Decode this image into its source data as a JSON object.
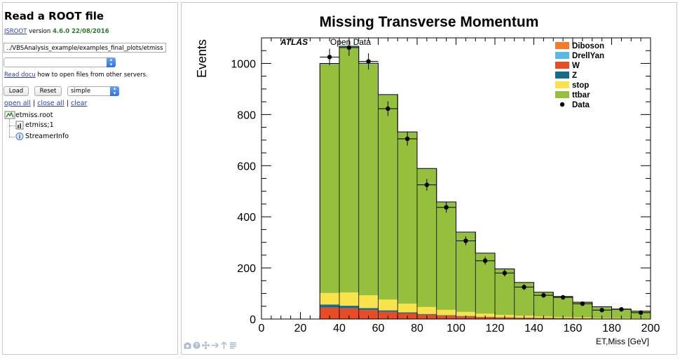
{
  "left": {
    "title": "Read a ROOT file",
    "version_link": "JSROOT",
    "version_text": " version ",
    "version_value": "4.6.0 22/08/2016",
    "file_path": "../VBSAnalysis_example/examples_final_plots/etmiss",
    "docu_link": "Read docu",
    "docu_text": " how to open files from other servers.",
    "load_label": "Load",
    "reset_label": "Reset",
    "layout_value": "simple",
    "open_all": "open all",
    "close_all": "close all",
    "clear": "clear",
    "sep": "|",
    "tree": {
      "root": "etmiss.root",
      "item1": "etmiss;1",
      "item2": "StreamerInfo"
    }
  },
  "toolbar": [
    "camera-icon",
    "help-icon",
    "move-icon",
    "arrow-right-icon",
    "arrow-up-icon",
    "menu-icon"
  ],
  "colors": {
    "Diboson": "#f47b2a",
    "DrellYan": "#5ab8e6",
    "W": "#e74c24",
    "Z": "#1a6a8a",
    "stop": "#f9e34a",
    "ttbar": "#95c03e",
    "Data": "#000000",
    "link": "#2a3fbf",
    "version_green": "#2a7a2a"
  },
  "chart_data": {
    "type": "bar",
    "title": "Missing Transverse Momentum",
    "xlabel": "ET,Miss [GeV]",
    "ylabel": "Events",
    "xlim": [
      0,
      200
    ],
    "ylim": [
      0,
      1100
    ],
    "x_ticks": [
      0,
      20,
      40,
      60,
      80,
      100,
      120,
      140,
      160,
      180,
      200
    ],
    "y_ticks": [
      0,
      200,
      400,
      600,
      800,
      1000
    ],
    "atlas_label": "ATLAS",
    "open_data_label": "Open Data",
    "legend_position": "top-right",
    "bin_edges": [
      30,
      40,
      50,
      60,
      70,
      80,
      90,
      100,
      110,
      120,
      130,
      140,
      150,
      160,
      170,
      180,
      190,
      200
    ],
    "stack_order": [
      "W",
      "Z",
      "stop",
      "ttbar",
      "DrellYan",
      "Diboson"
    ],
    "series": [
      {
        "name": "Diboson",
        "values": [
          1,
          1,
          1,
          1,
          1,
          1,
          1,
          1,
          1,
          0,
          0,
          0,
          0,
          0,
          0,
          0,
          0
        ]
      },
      {
        "name": "DrellYan",
        "values": [
          2,
          2,
          2,
          1,
          1,
          1,
          1,
          1,
          1,
          0,
          0,
          0,
          0,
          0,
          0,
          0,
          0
        ]
      },
      {
        "name": "W",
        "values": [
          45,
          42,
          35,
          28,
          22,
          17,
          13,
          10,
          8,
          6,
          5,
          4,
          3,
          3,
          2,
          2,
          2
        ]
      },
      {
        "name": "Z",
        "values": [
          12,
          10,
          8,
          6,
          4,
          3,
          2,
          2,
          1,
          1,
          1,
          1,
          1,
          0,
          0,
          0,
          0
        ]
      },
      {
        "name": "stop",
        "values": [
          45,
          52,
          50,
          42,
          34,
          27,
          21,
          16,
          12,
          9,
          7,
          5,
          4,
          3,
          2,
          2,
          1
        ]
      },
      {
        "name": "ttbar",
        "values": [
          895,
          960,
          905,
          800,
          670,
          540,
          420,
          310,
          235,
          180,
          130,
          95,
          80,
          60,
          44,
          35,
          28
        ]
      }
    ],
    "data": {
      "name": "Data",
      "x": [
        35,
        45,
        55,
        65,
        75,
        85,
        95,
        105,
        115,
        125,
        135,
        145,
        155,
        165,
        175,
        185,
        195
      ],
      "y": [
        1025,
        1062,
        1008,
        823,
        705,
        525,
        437,
        306,
        228,
        180,
        125,
        93,
        85,
        60,
        35,
        38,
        25
      ]
    }
  }
}
